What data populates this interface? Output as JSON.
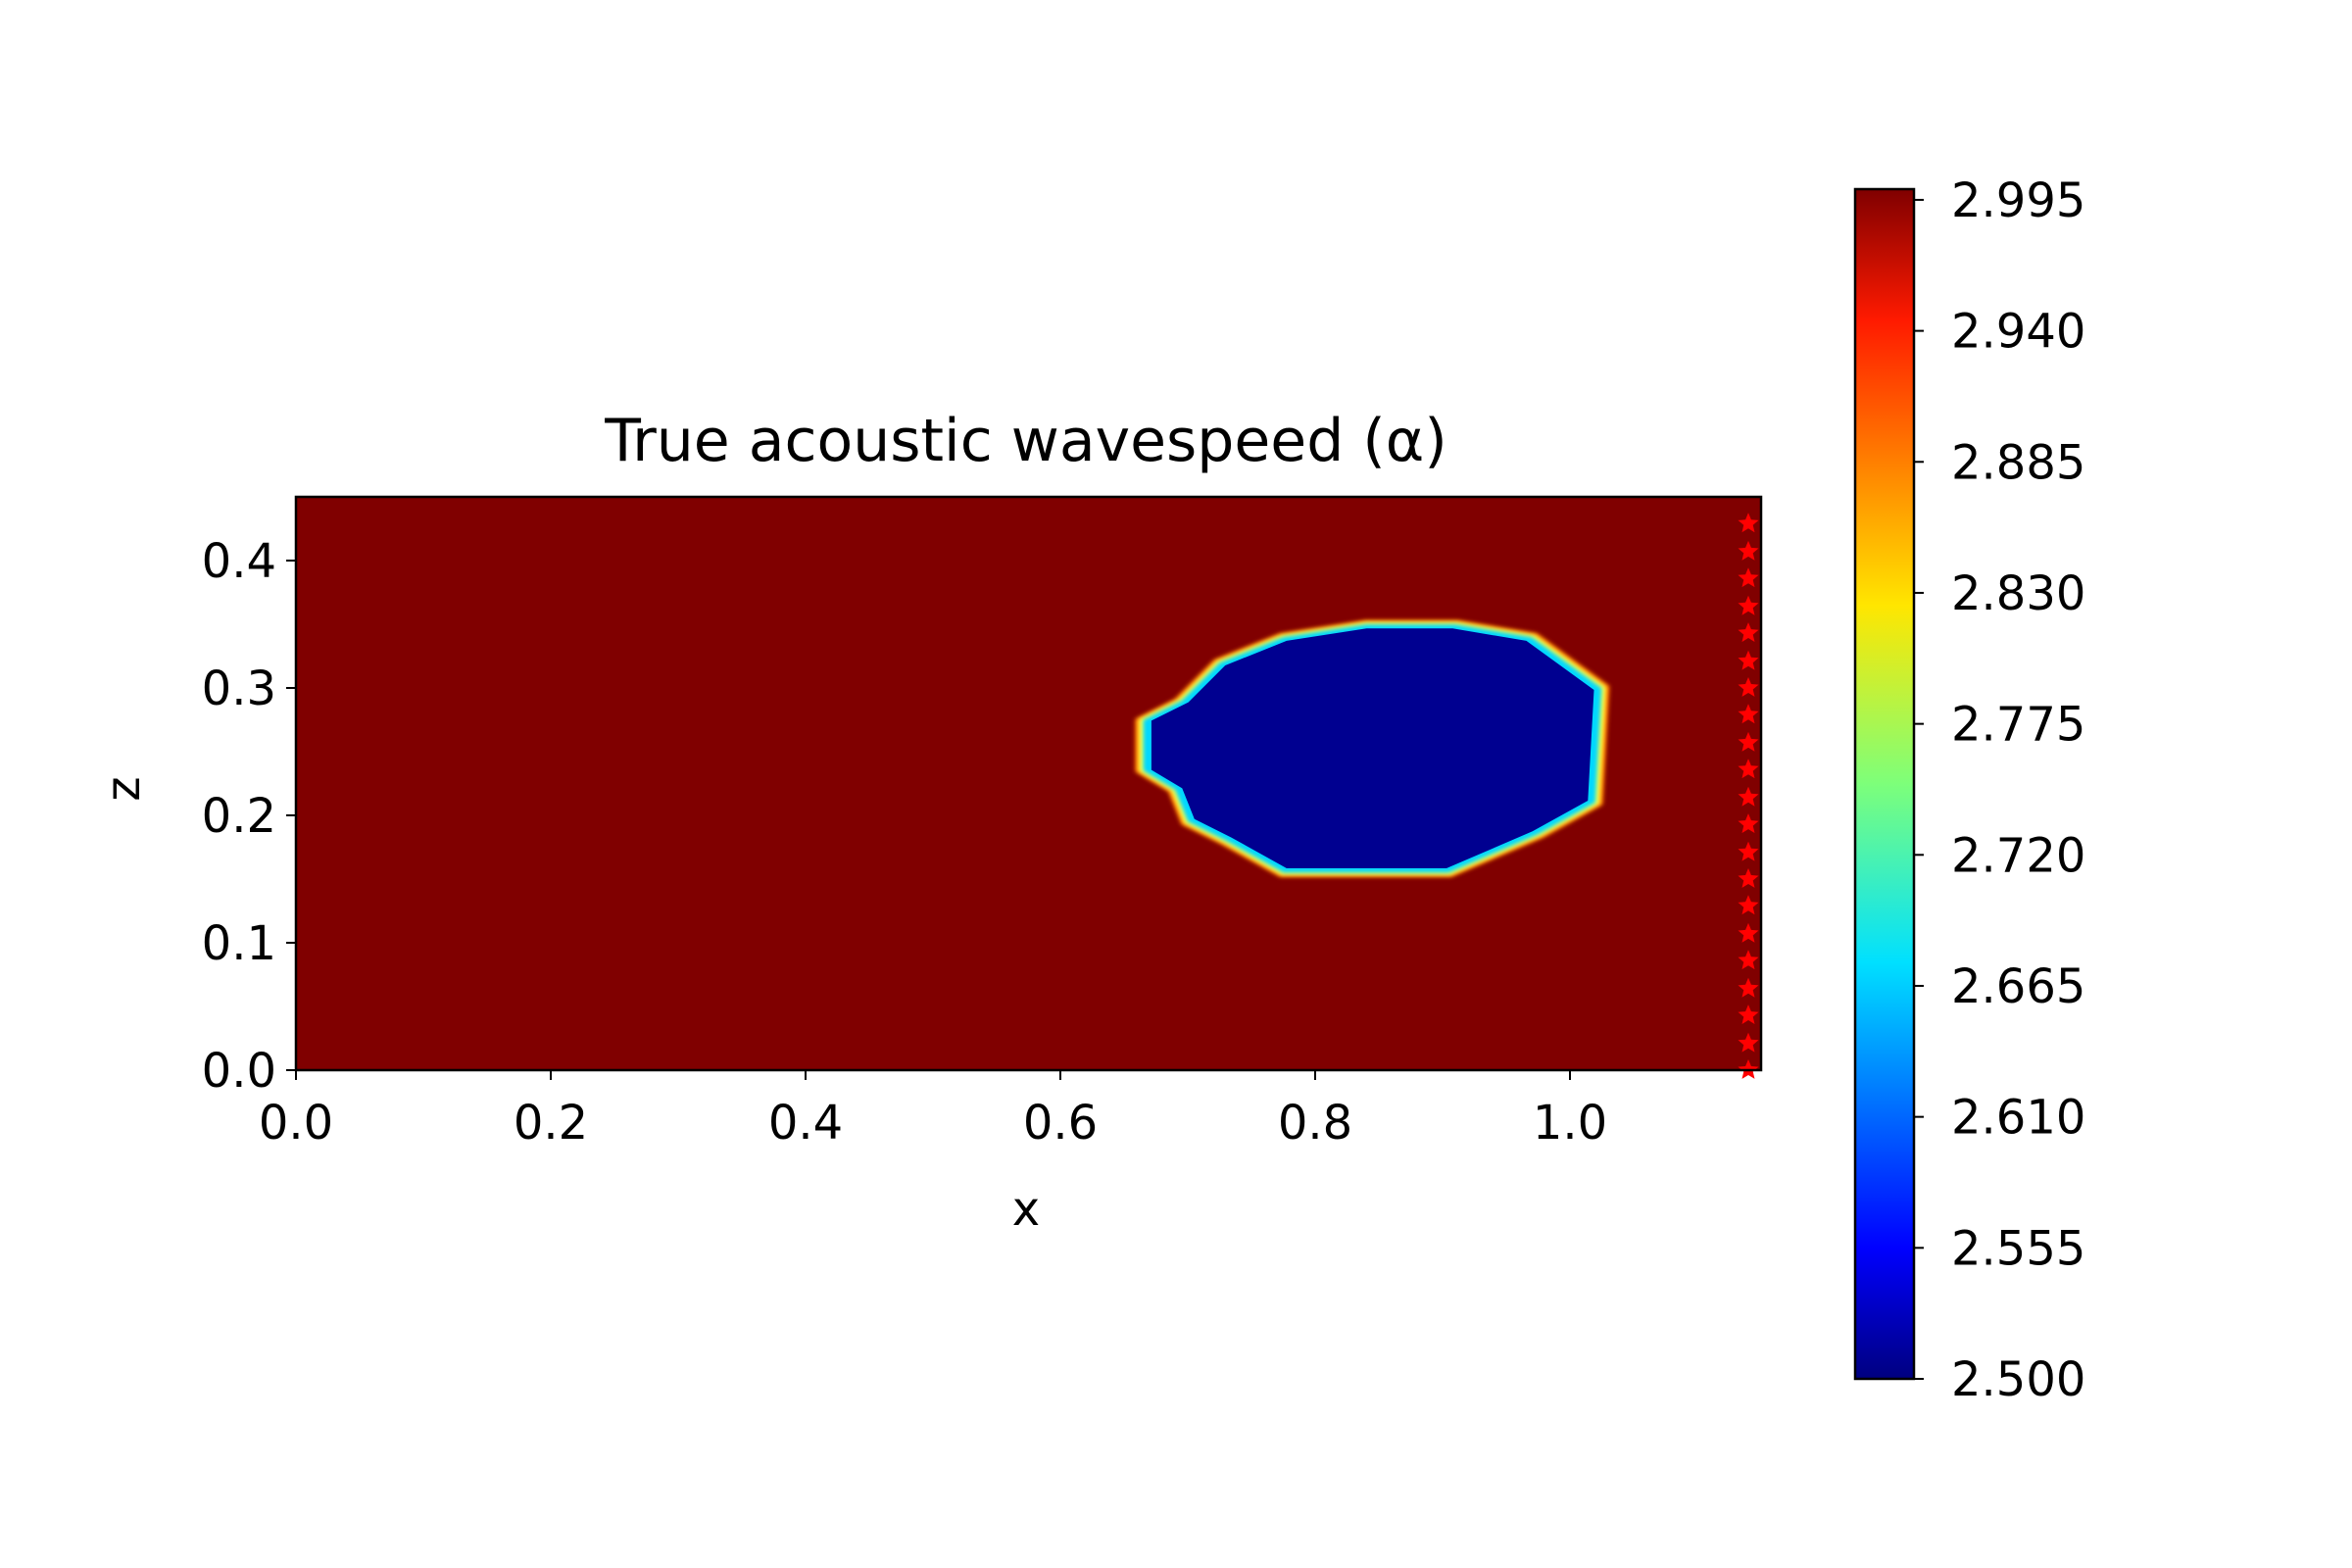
{
  "chart_data": {
    "type": "heatmap",
    "title": "True acoustic wavespeed (α)",
    "xlabel": "x",
    "ylabel": "z",
    "xlim": [
      0.0,
      1.15
    ],
    "ylim": [
      0.0,
      0.45
    ],
    "x_ticks": [
      "0.0",
      "0.2",
      "0.4",
      "0.6",
      "0.8",
      "1.0"
    ],
    "y_ticks": [
      "0.0",
      "0.1",
      "0.2",
      "0.3",
      "0.4"
    ],
    "background_value": 2.995,
    "inclusion": {
      "value": 2.5,
      "center": [
        0.85,
        0.255
      ],
      "polygon": [
        [
          0.775,
          0.155
        ],
        [
          0.905,
          0.155
        ],
        [
          0.975,
          0.185
        ],
        [
          1.02,
          0.21
        ],
        [
          1.025,
          0.3
        ],
        [
          0.97,
          0.34
        ],
        [
          0.91,
          0.35
        ],
        [
          0.84,
          0.35
        ],
        [
          0.775,
          0.34
        ],
        [
          0.725,
          0.32
        ],
        [
          0.695,
          0.29
        ],
        [
          0.665,
          0.275
        ],
        [
          0.665,
          0.235
        ],
        [
          0.69,
          0.22
        ],
        [
          0.7,
          0.195
        ],
        [
          0.73,
          0.18
        ]
      ]
    },
    "receivers": {
      "marker": "star",
      "color": "#ff0000",
      "x": 1.14,
      "z": [
        0.0,
        0.021,
        0.043,
        0.064,
        0.086,
        0.107,
        0.129,
        0.15,
        0.171,
        0.193,
        0.214,
        0.236,
        0.257,
        0.279,
        0.3,
        0.321,
        0.343,
        0.364,
        0.386,
        0.407,
        0.429
      ]
    },
    "colorbar": {
      "colormap": "jet",
      "min": 2.5,
      "max": 2.9995,
      "ticks": [
        "2.500",
        "2.555",
        "2.610",
        "2.665",
        "2.720",
        "2.775",
        "2.830",
        "2.885",
        "2.940",
        "2.995"
      ],
      "tick_values": [
        2.5,
        2.555,
        2.61,
        2.665,
        2.72,
        2.775,
        2.83,
        2.885,
        2.94,
        2.995
      ]
    },
    "grid": false,
    "legend": "none"
  }
}
